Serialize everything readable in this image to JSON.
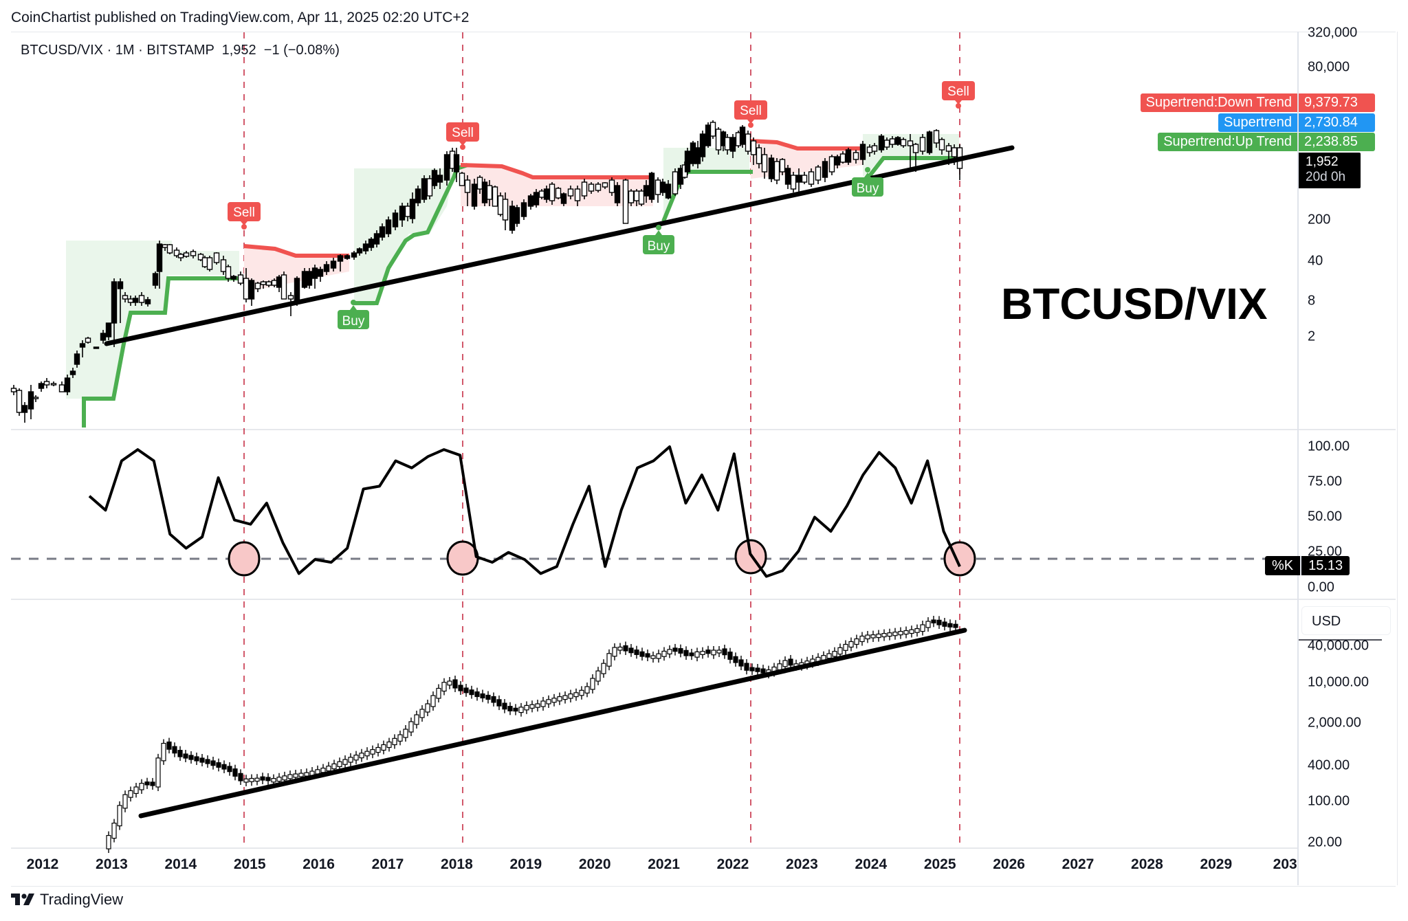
{
  "publisher_line": "CoinChartist published on TradingView.com, Apr 11, 2025 02:20 UTC+2",
  "legend": {
    "symbol": "BTCUSD/VIX",
    "interval": "1M",
    "exchange": "BITSTAMP",
    "last": "1,952",
    "change": "−1 (−0.08%)",
    "full": "BTCUSD/VIX · 1M · BITSTAMP  1,952  −1 (−0.08%)"
  },
  "big_label": "BTCUSD/VIX",
  "colors": {
    "down_trend": "#f05350",
    "supertrend": "#2196f3",
    "up_trend": "#4caf50",
    "down_fill": "#fde7e7",
    "up_fill": "#e8f5e9",
    "trendline": "#000000",
    "cycle_marker": "#c62f45",
    "oversold_circle": "#f8c8c8",
    "level_line": "#787b86"
  },
  "price_labels": [
    {
      "name": "Supertrend:Down Trend",
      "value": "9,379.73",
      "color": "#f05350"
    },
    {
      "name": "Supertrend",
      "value": "2,730.84",
      "color": "#2196f3"
    },
    {
      "name": "Supertrend:Up Trend",
      "value": "2,238.85",
      "color": "#4caf50"
    }
  ],
  "current_price": {
    "value": "1,952",
    "countdown": "20d 0h"
  },
  "signals": [
    {
      "type": "Sell",
      "date": "2014-12"
    },
    {
      "type": "Buy",
      "date": "2016-06"
    },
    {
      "type": "Sell",
      "date": "2018-01"
    },
    {
      "type": "Buy",
      "date": "2020-12"
    },
    {
      "type": "Sell",
      "date": "2022-03"
    },
    {
      "type": "Buy",
      "date": "2023-12"
    },
    {
      "type": "Sell",
      "date": "2025-03"
    }
  ],
  "upper_axis": {
    "ticks": [
      "320,000",
      "80,000",
      "200",
      "40",
      "8",
      "2"
    ]
  },
  "stoch_axis": {
    "ticks": [
      "100.00",
      "75.00",
      "50.00",
      "25.00",
      "0.00"
    ],
    "k_label": "%K",
    "k_value": "15.13"
  },
  "lower_axis": {
    "currency": "USD",
    "ticks": [
      "40,000.00",
      "10,000.00",
      "2,000.00",
      "400.00",
      "100.00",
      "20.00"
    ]
  },
  "x_axis": {
    "years": [
      "2012",
      "2013",
      "2014",
      "2015",
      "2016",
      "2017",
      "2018",
      "2019",
      "2020",
      "2021",
      "2022",
      "2023",
      "2024",
      "2025",
      "2026",
      "2027",
      "2028",
      "2029",
      "203"
    ]
  },
  "footer": {
    "brand": "TradingView"
  },
  "chart_data": [
    {
      "type": "candlestick",
      "title": "BTCUSD/VIX · 1M · BITSTAMP",
      "scale": "log",
      "yticks": [
        2,
        8,
        40,
        200,
        80000,
        320000
      ],
      "last": 1952,
      "change": -1,
      "change_pct": -0.08,
      "indicators": {
        "supertrend_down": 9379.73,
        "supertrend": 2730.84,
        "supertrend_up": 2238.85
      },
      "approx_path": {
        "x": [
          "2012-09",
          "2013-03",
          "2013-11",
          "2014-06",
          "2015-01",
          "2015-08",
          "2016-06",
          "2017-03",
          "2017-12",
          "2018-06",
          "2019-06",
          "2020-03",
          "2020-12",
          "2021-04",
          "2021-11",
          "2022-06",
          "2022-12",
          "2023-12",
          "2024-03",
          "2024-12",
          "2025-03"
        ],
        "values_rel": [
          "low",
          "rise",
          "peak",
          "range",
          "down",
          "low",
          "rise",
          "rise",
          "peak",
          "range",
          "range",
          "dip",
          "rise",
          "peak",
          "peak",
          "down",
          "low",
          "rise",
          "high",
          "high",
          "touch trendline"
        ]
      },
      "trendline": "ascending support from 2013 to 2026",
      "cycle_markers": [
        "2015-01",
        "2018-01",
        "2022-03",
        "2025-04"
      ]
    },
    {
      "type": "line",
      "title": "Stochastic %K",
      "ylim": [
        0,
        100
      ],
      "yticks": [
        0,
        25,
        50,
        75,
        100
      ],
      "level_line": 20,
      "last": 15.13,
      "x": [
        "2012-09",
        "2012-11",
        "2013-01",
        "2013-03",
        "2013-04",
        "2013-07",
        "2013-09",
        "2013-11",
        "2014-02",
        "2014-05",
        "2014-08",
        "2014-12",
        "2015-02",
        "2015-05",
        "2015-08",
        "2015-10",
        "2016-01",
        "2016-04",
        "2016-07",
        "2016-11",
        "2017-03",
        "2017-07",
        "2017-10",
        "2017-12",
        "2018-02",
        "2018-05",
        "2018-09",
        "2018-12",
        "2019-03",
        "2019-06",
        "2019-09",
        "2019-12",
        "2020-03",
        "2020-06",
        "2020-10",
        "2020-12",
        "2021-02",
        "2021-04",
        "2021-07",
        "2021-10",
        "2021-12",
        "2022-03",
        "2022-06",
        "2022-09",
        "2022-12",
        "2023-03",
        "2023-06",
        "2023-09",
        "2023-12",
        "2024-03",
        "2024-06",
        "2024-09",
        "2024-11",
        "2025-01",
        "2025-03"
      ],
      "values": [
        65,
        55,
        90,
        98,
        90,
        38,
        28,
        36,
        78,
        48,
        45,
        60,
        32,
        10,
        20,
        18,
        28,
        70,
        72,
        90,
        85,
        93,
        98,
        94,
        22,
        18,
        25,
        20,
        10,
        15,
        45,
        72,
        15,
        55,
        85,
        90,
        100,
        60,
        80,
        55,
        95,
        24,
        8,
        12,
        26,
        50,
        40,
        58,
        80,
        96,
        85,
        60,
        90,
        40,
        15
      ]
    },
    {
      "type": "candlestick",
      "title": "BTCUSD",
      "scale": "log",
      "currency": "USD",
      "yticks": [
        20,
        100,
        400,
        2000,
        10000,
        40000
      ],
      "approx_points": {
        "x": [
          "2013-01",
          "2013-04",
          "2013-11",
          "2014-06",
          "2015-01",
          "2015-08",
          "2016-06",
          "2017-01",
          "2017-12",
          "2018-06",
          "2019-01",
          "2019-06",
          "2020-03",
          "2020-12",
          "2021-04",
          "2021-11",
          "2022-06",
          "2022-12",
          "2023-12",
          "2024-03",
          "2024-12",
          "2025-03"
        ],
        "values": [
          20,
          120,
          1100,
          600,
          250,
          230,
          650,
          950,
          14000,
          6500,
          3700,
          10000,
          6000,
          29000,
          58000,
          57000,
          20000,
          17000,
          42000,
          71000,
          94000,
          82000
        ]
      },
      "trendline": "ascending support from 2013-07 to 2025-04"
    }
  ]
}
